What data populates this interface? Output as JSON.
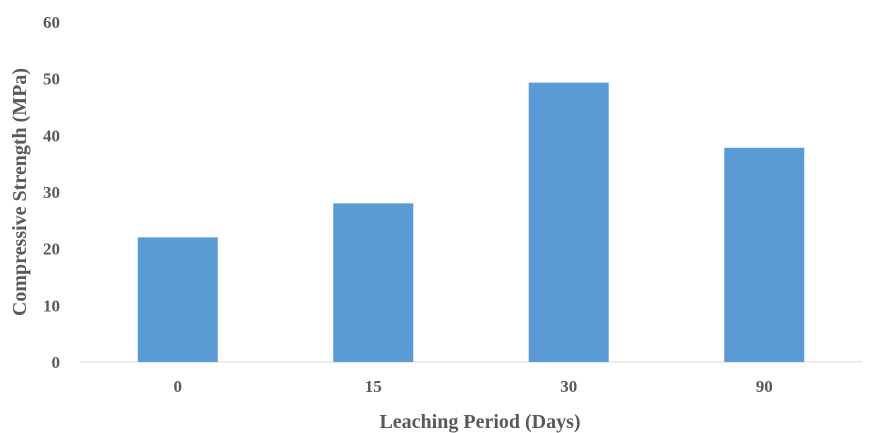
{
  "chart_data": {
    "type": "bar",
    "categories": [
      "0",
      "15",
      "30",
      "90"
    ],
    "values": [
      22,
      28,
      49.3,
      37.8
    ],
    "xlabel": "Leaching Period (Days)",
    "ylabel": "Compressive Strength (MPa)",
    "ylim": [
      0,
      60
    ],
    "yticks": [
      "0",
      "10",
      "20",
      "30",
      "40",
      "50",
      "60"
    ],
    "grid": false,
    "bar_color": "#5b9bd5",
    "axis_color": "#d9d9d9",
    "text_color": "#595959"
  }
}
